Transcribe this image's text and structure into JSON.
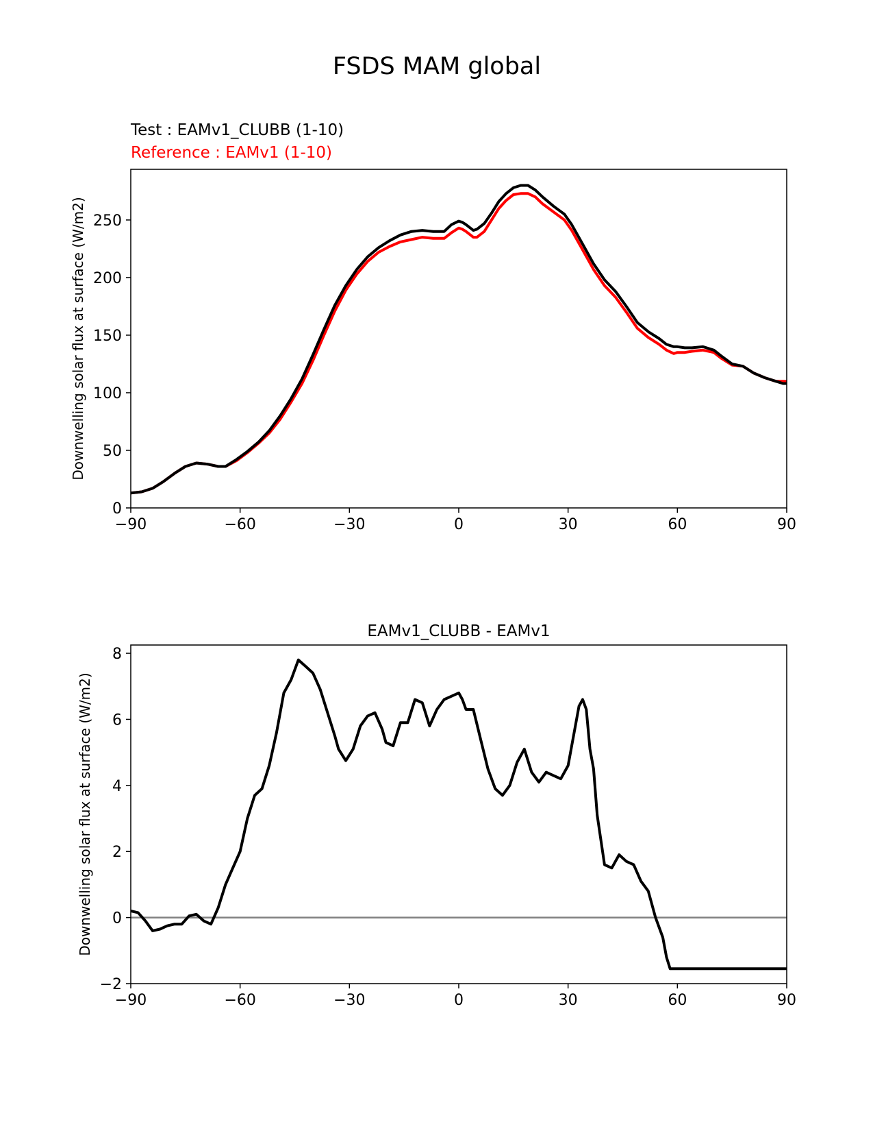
{
  "figure": {
    "title": "FSDS MAM global"
  },
  "colors": {
    "test": "#000000",
    "reference": "#ff0000",
    "zero_line": "#808080"
  },
  "chart_data": [
    {
      "type": "line",
      "name": "zonal-mean",
      "legend_test": "Test : EAMv1_CLUBB (1-10)",
      "legend_reference": "Reference : EAMv1 (1-10)",
      "title": "",
      "xlabel": "",
      "ylabel": "Downwelling solar flux at surface (W/m2)",
      "xlim": [
        -90,
        90
      ],
      "ylim": [
        0,
        294
      ],
      "xticks": [
        -90,
        -60,
        -30,
        0,
        30,
        60,
        90
      ],
      "xtick_labels": [
        "−90",
        "−60",
        "−30",
        "0",
        "30",
        "60",
        "90"
      ],
      "yticks": [
        0,
        50,
        100,
        150,
        200,
        250
      ],
      "ytick_labels": [
        "0",
        "50",
        "100",
        "150",
        "200",
        "250"
      ],
      "series": [
        {
          "name": "Test : EAMv1_CLUBB (1-10)",
          "x": [
            -90,
            -87,
            -84,
            -81,
            -78,
            -75,
            -72,
            -69,
            -66,
            -64,
            -61,
            -58,
            -55,
            -52,
            -49,
            -46,
            -43,
            -40,
            -37,
            -34,
            -31,
            -28,
            -25,
            -22,
            -19,
            -16,
            -13,
            -10,
            -7,
            -4,
            -2,
            0,
            1,
            2,
            4,
            5,
            7,
            9,
            11,
            13,
            15,
            17,
            19,
            21,
            23,
            26,
            29,
            31,
            34,
            37,
            40,
            43,
            46,
            49,
            52,
            55,
            57,
            59,
            60,
            62,
            64,
            67,
            70,
            72,
            75,
            78,
            81,
            84,
            87,
            89,
            90
          ],
          "values": [
            13,
            14,
            17,
            23,
            30,
            36,
            39,
            38,
            36,
            36,
            42,
            49,
            57,
            67,
            80,
            95,
            112,
            133,
            155,
            176,
            193,
            207,
            218,
            226,
            232,
            237,
            240,
            241,
            240,
            240,
            246,
            249,
            248,
            246,
            241,
            242,
            247,
            256,
            266,
            273,
            278,
            280,
            280,
            276,
            270,
            262,
            255,
            246,
            229,
            212,
            198,
            188,
            175,
            161,
            153,
            147,
            142,
            140,
            140,
            139,
            139,
            140,
            137,
            132,
            125,
            123,
            117,
            113,
            110,
            108,
            108
          ]
        },
        {
          "name": "Reference : EAMv1 (1-10)",
          "x": [
            -90,
            -87,
            -84,
            -81,
            -78,
            -75,
            -72,
            -69,
            -66,
            -64,
            -61,
            -58,
            -55,
            -52,
            -49,
            -46,
            -43,
            -40,
            -37,
            -34,
            -31,
            -28,
            -25,
            -22,
            -19,
            -16,
            -13,
            -10,
            -7,
            -4,
            -2,
            0,
            1,
            2,
            4,
            5,
            7,
            9,
            11,
            13,
            15,
            17,
            19,
            21,
            23,
            26,
            29,
            31,
            34,
            37,
            40,
            43,
            46,
            49,
            52,
            55,
            57,
            59,
            60,
            62,
            64,
            67,
            70,
            72,
            75,
            78,
            81,
            84,
            87,
            89,
            90
          ],
          "values": [
            13,
            14,
            17,
            23,
            30,
            36,
            39,
            38,
            36,
            36,
            41,
            48,
            56,
            65,
            77,
            92,
            108,
            128,
            150,
            171,
            189,
            203,
            214,
            222,
            227,
            231,
            233,
            235,
            234,
            234,
            239,
            243,
            242,
            240,
            235,
            235,
            240,
            250,
            260,
            267,
            272,
            273,
            273,
            270,
            264,
            257,
            250,
            241,
            224,
            207,
            193,
            183,
            170,
            156,
            148,
            142,
            137,
            134,
            135,
            135,
            136,
            137,
            135,
            130,
            124,
            123,
            117,
            113,
            110,
            110,
            110
          ]
        }
      ]
    },
    {
      "type": "line",
      "name": "difference",
      "title": "EAMv1_CLUBB - EAMv1",
      "xlabel": "",
      "ylabel": "Downwelling solar flux at surface (W/m2)",
      "xlim": [
        -90,
        90
      ],
      "ylim": [
        -2,
        8.25
      ],
      "xticks": [
        -90,
        -60,
        -30,
        0,
        30,
        60,
        90
      ],
      "xtick_labels": [
        "−90",
        "−60",
        "−30",
        "0",
        "30",
        "60",
        "90"
      ],
      "yticks": [
        -2,
        0,
        2,
        4,
        6,
        8
      ],
      "ytick_labels": [
        "−2",
        "0",
        "2",
        "4",
        "6",
        "8"
      ],
      "reference_line": 0,
      "series": [
        {
          "name": "EAMv1_CLUBB - EAMv1",
          "x": [
            -90,
            -88,
            -86,
            -84,
            -82,
            -80,
            -78,
            -76,
            -74,
            -72,
            -70,
            -68,
            -66,
            -64,
            -62,
            -60,
            -58,
            -56,
            -54,
            -52,
            -50,
            -48,
            -46,
            -44,
            -42,
            -40,
            -38,
            -36,
            -34,
            -33,
            -31,
            -29,
            -27,
            -25,
            -23,
            -21,
            -20,
            -18,
            -16,
            -14,
            -12,
            -10,
            -8,
            -6,
            -4,
            -2,
            0,
            1,
            2,
            4,
            6,
            8,
            10,
            12,
            14,
            16,
            18,
            20,
            22,
            24,
            26,
            28,
            29,
            30,
            31,
            32,
            33,
            34,
            35,
            36,
            37,
            38,
            40,
            42,
            44,
            46,
            48,
            50,
            52,
            54,
            56,
            57,
            58,
            60,
            62,
            64,
            66,
            68,
            70,
            72,
            74,
            76,
            78,
            80,
            82,
            84,
            86,
            88,
            90
          ],
          "values": [
            0.2,
            0.15,
            -0.1,
            -0.4,
            -0.35,
            -0.25,
            -0.2,
            -0.2,
            0.05,
            0.1,
            -0.1,
            -0.2,
            0.3,
            1.0,
            1.5,
            2.0,
            3.0,
            3.7,
            3.9,
            4.6,
            5.6,
            6.8,
            7.2,
            7.8,
            7.6,
            7.4,
            6.9,
            6.2,
            5.5,
            5.1,
            4.75,
            5.1,
            5.8,
            6.1,
            6.2,
            5.7,
            5.3,
            5.2,
            5.9,
            5.9,
            6.6,
            6.5,
            5.8,
            6.3,
            6.6,
            6.7,
            6.8,
            6.6,
            6.3,
            6.3,
            5.4,
            4.5,
            3.9,
            3.7,
            4.0,
            4.7,
            5.1,
            4.4,
            4.1,
            4.4,
            4.3,
            4.2,
            4.4,
            4.6,
            5.2,
            5.8,
            6.4,
            6.6,
            6.3,
            5.1,
            4.5,
            3.1,
            1.6,
            1.5,
            1.9,
            1.7,
            1.6,
            1.1,
            0.8,
            0.0,
            -0.6,
            -1.2,
            -1.55,
            -1.55,
            -1.55,
            -1.55,
            -1.55,
            -1.55,
            -1.55,
            -1.55,
            -1.55,
            -1.55,
            -1.55,
            -1.55,
            -1.55,
            -1.55,
            -1.55,
            -1.55,
            -1.55
          ]
        }
      ]
    }
  ]
}
